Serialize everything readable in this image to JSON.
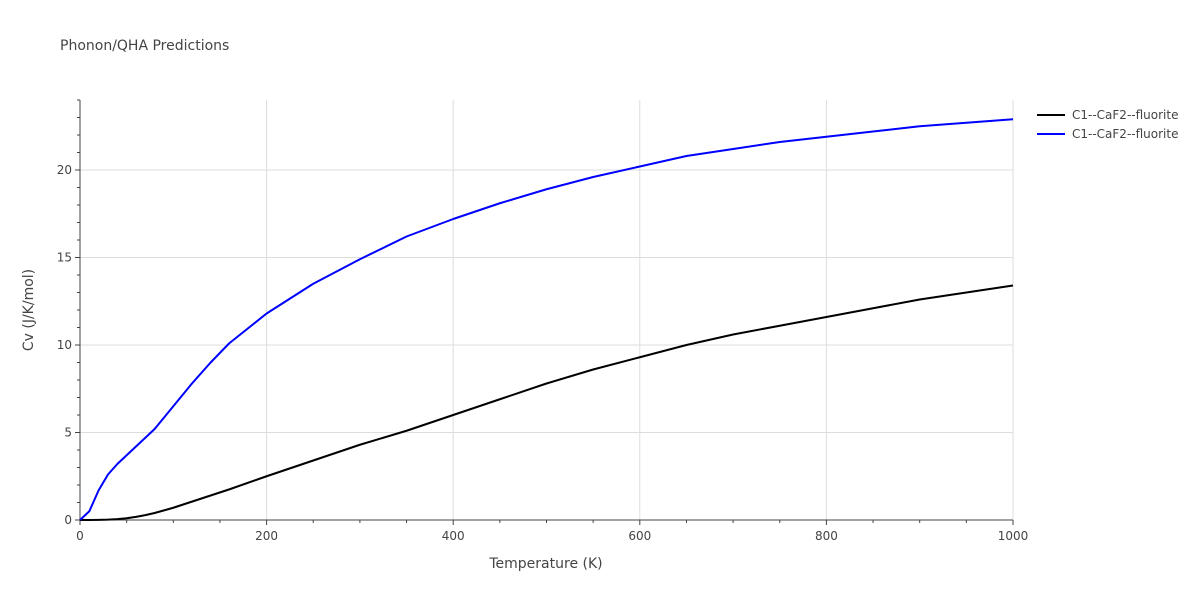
{
  "chart_data": {
    "type": "line",
    "title": "Phonon/QHA Predictions",
    "xlabel": "Temperature (K)",
    "ylabel": "Cv (J/K/mol)",
    "xlim": [
      0,
      1000
    ],
    "ylim": [
      0,
      24
    ],
    "x_ticks": [
      0,
      200,
      400,
      600,
      800,
      1000
    ],
    "y_ticks": [
      0,
      5,
      10,
      15,
      20
    ],
    "grid": true,
    "legend_position": "top-right",
    "series": [
      {
        "name": "C1--CaF2--fluorite",
        "color": "#000000",
        "x": [
          0,
          10,
          20,
          30,
          40,
          50,
          60,
          70,
          80,
          100,
          120,
          140,
          160,
          200,
          250,
          300,
          350,
          400,
          450,
          500,
          550,
          600,
          650,
          700,
          750,
          800,
          850,
          900,
          950,
          1000
        ],
        "y": [
          0,
          0.002,
          0.01,
          0.02,
          0.05,
          0.1,
          0.18,
          0.28,
          0.4,
          0.7,
          1.05,
          1.4,
          1.75,
          2.5,
          3.4,
          4.3,
          5.1,
          6.0,
          6.9,
          7.8,
          8.6,
          9.3,
          10.0,
          10.6,
          11.1,
          11.6,
          12.1,
          12.6,
          13.0,
          13.4
        ]
      },
      {
        "name": "C1--CaF2--fluorite",
        "color": "#0000ff",
        "x": [
          0,
          10,
          20,
          30,
          40,
          50,
          60,
          70,
          80,
          100,
          120,
          140,
          160,
          200,
          250,
          300,
          350,
          400,
          450,
          500,
          550,
          600,
          650,
          700,
          750,
          800,
          850,
          900,
          950,
          1000
        ],
        "y": [
          0,
          0.5,
          1.7,
          2.6,
          3.2,
          3.7,
          4.2,
          4.7,
          5.2,
          6.5,
          7.8,
          9.0,
          10.1,
          11.8,
          13.5,
          14.9,
          16.2,
          17.2,
          18.1,
          18.9,
          19.6,
          20.2,
          20.8,
          21.2,
          21.6,
          21.9,
          22.2,
          22.5,
          22.7,
          22.9
        ]
      }
    ]
  }
}
